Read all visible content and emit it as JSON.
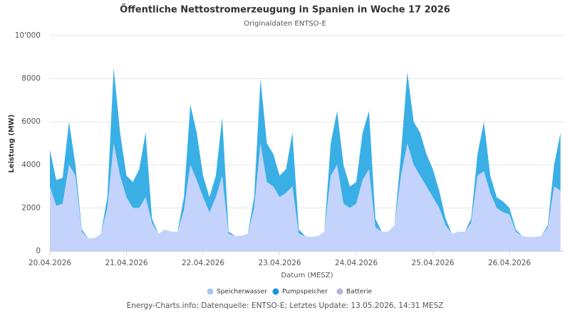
{
  "chart_data": {
    "type": "stacked_area",
    "title": "Öffentliche Nettostromerzeugung in Spanien in Woche 17 2026",
    "subtitle": "Originaldaten ENTSO-E",
    "y_label": "Leistung (MW)",
    "x_label": "Datum (MESZ)",
    "credit": "Energy-Charts.info; Datenquelle: ENTSO-E; Letztes Update: 13.05.2026, 14:31 MESZ",
    "categories": [
      "20.04.2026",
      null,
      null,
      null,
      null,
      null,
      null,
      null,
      null,
      null,
      null,
      null,
      "21.04.2026",
      null,
      null,
      null,
      null,
      null,
      null,
      null,
      null,
      null,
      null,
      null,
      "22.04.2026",
      null,
      null,
      null,
      null,
      null,
      null,
      null,
      null,
      null,
      null,
      null,
      "23.04.2026",
      null,
      null,
      null,
      null,
      null,
      null,
      null,
      null,
      null,
      null,
      null,
      "24.04.2026",
      null,
      null,
      null,
      null,
      null,
      null,
      null,
      null,
      null,
      null,
      null,
      "25.04.2026",
      null,
      null,
      null,
      null,
      null,
      null,
      null,
      null,
      null,
      null,
      null,
      "26.04.2026",
      null,
      null,
      null,
      null,
      null,
      null,
      null,
      null
    ],
    "series": [
      {
        "name": "Speicherwasser",
        "color": "#c3d3fb",
        "legend_color": "#a9c4f5",
        "values": [
          3000,
          2100,
          2200,
          4000,
          3500,
          900,
          600,
          600,
          800,
          2000,
          5000,
          3500,
          2500,
          2000,
          2000,
          2500,
          1300,
          800,
          1000,
          900,
          900,
          1900,
          4000,
          3300,
          2500,
          1800,
          2500,
          3500,
          800,
          700,
          700,
          800,
          2000,
          5000,
          3200,
          3000,
          2500,
          2700,
          3000,
          800,
          700,
          650,
          700,
          900,
          3500,
          4000,
          2200,
          2000,
          2200,
          3300,
          3800,
          1100,
          900,
          900,
          1200,
          3500,
          5000,
          4000,
          3500,
          3000,
          2500,
          2000,
          1200,
          800,
          900,
          900,
          1300,
          3500,
          3700,
          2700,
          2000,
          1800,
          1700,
          900,
          700,
          650,
          650,
          700,
          1100,
          3000,
          2800
        ]
      },
      {
        "name": "Pumpspeicher",
        "color": "#3aafe6",
        "legend_color": "#1b97d6",
        "values": [
          1700,
          1200,
          1200,
          2000,
          500,
          100,
          0,
          0,
          0,
          500,
          3500,
          2000,
          1000,
          1200,
          1800,
          3000,
          200,
          0,
          0,
          0,
          0,
          600,
          2800,
          2200,
          1000,
          700,
          1000,
          2700,
          100,
          0,
          0,
          0,
          500,
          3000,
          1800,
          1500,
          1000,
          1100,
          2500,
          200,
          0,
          0,
          0,
          0,
          1500,
          2500,
          1800,
          1000,
          1000,
          2200,
          2700,
          400,
          0,
          0,
          0,
          1000,
          3300,
          2000,
          2000,
          1500,
          1300,
          800,
          300,
          0,
          0,
          0,
          200,
          1000,
          2300,
          800,
          500,
          500,
          300,
          100,
          0,
          0,
          0,
          0,
          100,
          1000,
          2700
        ]
      },
      {
        "name": "Batterie",
        "color": "#b4b4e0",
        "legend_color": "#b4b4e0",
        "values": [
          0,
          0,
          0,
          0,
          0,
          0,
          0,
          0,
          0,
          0,
          0,
          0,
          0,
          0,
          0,
          0,
          0,
          0,
          0,
          0,
          0,
          0,
          0,
          0,
          0,
          0,
          0,
          0,
          0,
          0,
          0,
          0,
          0,
          0,
          0,
          0,
          0,
          0,
          0,
          0,
          0,
          0,
          0,
          0,
          0,
          0,
          0,
          0,
          0,
          0,
          0,
          0,
          0,
          0,
          0,
          0,
          0,
          0,
          0,
          0,
          0,
          0,
          0,
          0,
          0,
          0,
          0,
          0,
          0,
          0,
          0,
          0,
          0,
          0,
          0,
          0,
          0,
          0,
          0,
          0,
          0
        ]
      }
    ],
    "ylim": [
      0,
      10000
    ],
    "yticks": [
      0,
      2000,
      4000,
      6000,
      8000,
      {
        "value": 10000,
        "label": "10'000"
      }
    ],
    "grid": true
  }
}
